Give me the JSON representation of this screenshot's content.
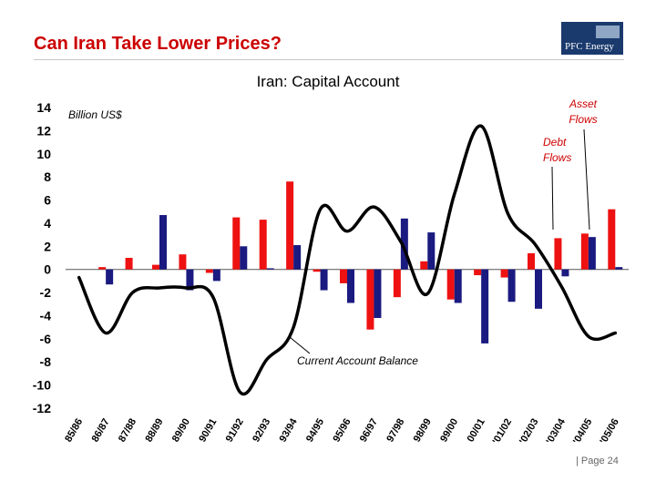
{
  "slide": {
    "title": "Can Iran Take Lower Prices?",
    "logo_text": "PFC Energy",
    "page_label": "| Page 24"
  },
  "colors": {
    "title": "#cc0000",
    "asset_flows": "#1a1a80",
    "debt_flows": "#ee1111",
    "current_account": "#000000"
  },
  "chart_data": {
    "type": "bar",
    "title": "Iran: Capital Account",
    "ylabel": "Billion US$",
    "ylim": [
      -12,
      14
    ],
    "yticks": [
      14,
      12,
      10,
      8,
      6,
      4,
      2,
      0,
      -2,
      -4,
      -6,
      -8,
      -10,
      -12
    ],
    "categories": [
      "85/86",
      "86/87",
      "87/88",
      "88/89",
      "89/90",
      "90/91",
      "91/92",
      "92/93",
      "93/94",
      "94/95",
      "95/96",
      "96/97",
      "97/98",
      "98/99",
      "99/00",
      "00/01",
      "'01/02",
      "'02/03",
      "'03/04",
      "'04/05",
      "'05/06"
    ],
    "series": [
      {
        "name": "Debt Flows",
        "kind": "bar",
        "values": [
          0,
          0.2,
          1.0,
          0.4,
          1.3,
          -0.3,
          4.5,
          4.3,
          7.6,
          -0.2,
          -1.2,
          -5.2,
          -2.4,
          0.7,
          -2.6,
          -0.5,
          -0.7,
          1.4,
          2.7,
          3.1,
          5.2
        ]
      },
      {
        "name": "Asset Flows",
        "kind": "bar",
        "values": [
          0,
          -1.3,
          0,
          4.7,
          -1.8,
          -1.0,
          2.0,
          0.1,
          2.1,
          -1.8,
          -2.9,
          -4.2,
          4.4,
          3.2,
          -2.9,
          -6.4,
          -2.8,
          -3.4,
          -0.6,
          2.8,
          0.2
        ]
      },
      {
        "name": "Current Account Balance",
        "kind": "line",
        "values": [
          -0.7,
          -5.5,
          -2.0,
          -1.6,
          -1.6,
          -2.4,
          -10.6,
          -7.8,
          -5.0,
          5.2,
          3.3,
          5.4,
          2.4,
          -2.1,
          6.5,
          12.4,
          4.8,
          2.2,
          -1.5,
          -5.8,
          -5.5
        ]
      }
    ],
    "annotations": [
      "Asset Flows",
      "Debt Flows",
      "Current Account Balance"
    ],
    "grid": false
  }
}
